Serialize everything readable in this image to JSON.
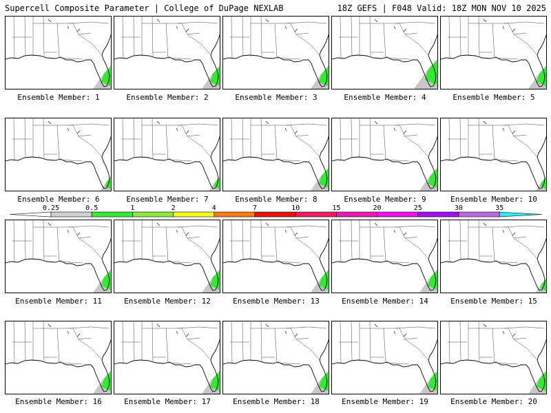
{
  "header": {
    "left": "Supercell Composite Parameter | College of DuPage NEXLAB",
    "right": "18Z GEFS | F048 Valid: 18Z MON NOV 10 2025"
  },
  "panel_label_prefix": "Ensemble Member: ",
  "members": [
    {
      "label": "Ensemble Member: 1",
      "member": 1,
      "scp_area": "medium"
    },
    {
      "label": "Ensemble Member: 2",
      "member": 2,
      "scp_area": "medium"
    },
    {
      "label": "Ensemble Member: 3",
      "member": 3,
      "scp_area": "medium"
    },
    {
      "label": "Ensemble Member: 4",
      "member": 4,
      "scp_area": "large"
    },
    {
      "label": "Ensemble Member: 5",
      "member": 5,
      "scp_area": "medium"
    },
    {
      "label": "Ensemble Member: 6",
      "member": 6,
      "scp_area": "small"
    },
    {
      "label": "Ensemble Member: 7",
      "member": 7,
      "scp_area": "small"
    },
    {
      "label": "Ensemble Member: 8",
      "member": 8,
      "scp_area": "medium"
    },
    {
      "label": "Ensemble Member: 9",
      "member": 9,
      "scp_area": "medium"
    },
    {
      "label": "Ensemble Member: 10",
      "member": 10,
      "scp_area": "small"
    },
    {
      "label": "Ensemble Member: 11",
      "member": 11,
      "scp_area": "medium"
    },
    {
      "label": "Ensemble Member: 12",
      "member": 12,
      "scp_area": "medium"
    },
    {
      "label": "Ensemble Member: 13",
      "member": 13,
      "scp_area": "medium"
    },
    {
      "label": "Ensemble Member: 14",
      "member": 14,
      "scp_area": "medium"
    },
    {
      "label": "Ensemble Member: 15",
      "member": 15,
      "scp_area": "small"
    },
    {
      "label": "Ensemble Member: 16",
      "member": 16,
      "scp_area": "medium"
    },
    {
      "label": "Ensemble Member: 17",
      "member": 17,
      "scp_area": "medium"
    },
    {
      "label": "Ensemble Member: 18",
      "member": 18,
      "scp_area": "medium"
    },
    {
      "label": "Ensemble Member: 19",
      "member": 19,
      "scp_area": "medium"
    },
    {
      "label": "Ensemble Member: 20",
      "member": 20,
      "scp_area": "medium"
    }
  ],
  "colorbar": {
    "tick_labels": [
      "0.25",
      "0.5",
      "1",
      "2",
      "4",
      "7",
      "10",
      "15",
      "20",
      "25",
      "30",
      "35"
    ],
    "colors": [
      "#d0d0d0",
      "#34ea34",
      "#8ae840",
      "#f8f820",
      "#f87c10",
      "#e81010",
      "#f01c60",
      "#f018b0",
      "#f010f0",
      "#a010f0",
      "#b868e0",
      "#30e8f0"
    ]
  },
  "map_colors": {
    "land": "#ffffff",
    "borders": "#000000",
    "gray_shade": "#c8c8c8",
    "green_shade": "#34e834"
  }
}
